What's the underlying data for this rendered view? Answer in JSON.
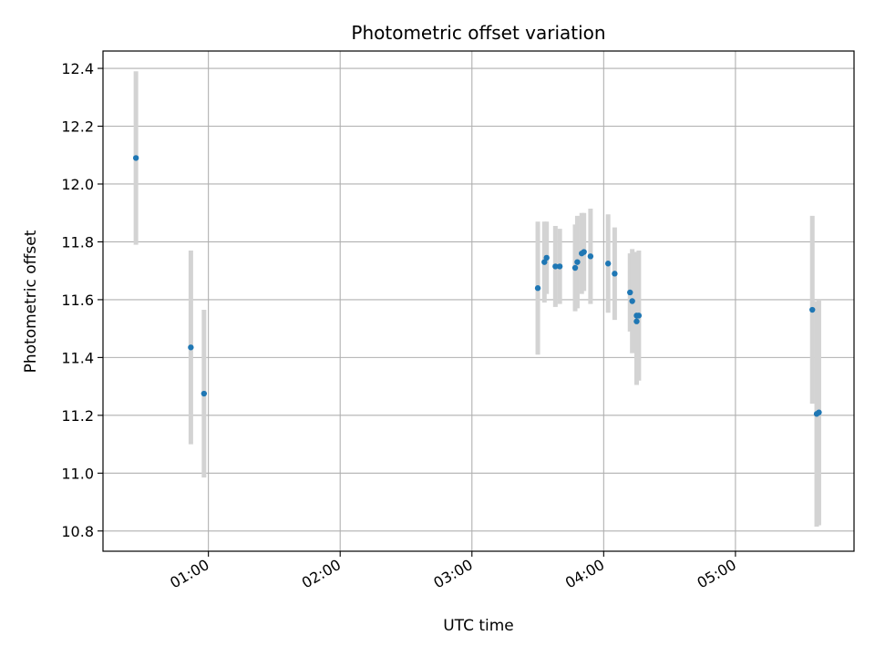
{
  "chart_data": {
    "type": "scatter",
    "title": "Photometric offset variation",
    "xlabel": "UTC time",
    "ylabel": "Photometric offset",
    "x_ticks": [
      "01:00",
      "02:00",
      "03:00",
      "04:00",
      "05:00"
    ],
    "y_ticks": [
      "10.8",
      "11.0",
      "11.2",
      "11.4",
      "11.6",
      "11.8",
      "12.0",
      "12.2",
      "12.4"
    ],
    "xlim": [
      "00:12",
      "05:54"
    ],
    "ylim": [
      10.73,
      12.46
    ],
    "grid": true,
    "colors": {
      "point": "#1f77b4",
      "errorbar": "#d3d3d3",
      "grid": "#b0b0b0"
    },
    "points": [
      {
        "x": "00:27",
        "y": 12.09,
        "err": 0.3
      },
      {
        "x": "00:52",
        "y": 11.435,
        "err": 0.335
      },
      {
        "x": "00:58",
        "y": 11.275,
        "err": 0.29
      },
      {
        "x": "03:30",
        "y": 11.64,
        "err": 0.23
      },
      {
        "x": "03:33",
        "y": 11.73,
        "err": 0.14
      },
      {
        "x": "03:34",
        "y": 11.745,
        "err": 0.125
      },
      {
        "x": "03:38",
        "y": 11.715,
        "err": 0.14
      },
      {
        "x": "03:40",
        "y": 11.715,
        "err": 0.13
      },
      {
        "x": "03:47",
        "y": 11.71,
        "err": 0.15
      },
      {
        "x": "03:48",
        "y": 11.73,
        "err": 0.16
      },
      {
        "x": "03:50",
        "y": 11.76,
        "err": 0.14
      },
      {
        "x": "03:51",
        "y": 11.765,
        "err": 0.135
      },
      {
        "x": "03:54",
        "y": 11.75,
        "err": 0.165
      },
      {
        "x": "04:02",
        "y": 11.725,
        "err": 0.17
      },
      {
        "x": "04:05",
        "y": 11.69,
        "err": 0.16
      },
      {
        "x": "04:12",
        "y": 11.625,
        "err": 0.135
      },
      {
        "x": "04:13",
        "y": 11.595,
        "err": 0.18
      },
      {
        "x": "04:15",
        "y": 11.545,
        "err": 0.22
      },
      {
        "x": "04:15",
        "y": 11.525,
        "err": 0.22
      },
      {
        "x": "04:16",
        "y": 11.545,
        "err": 0.225
      },
      {
        "x": "05:35",
        "y": 11.565,
        "err": 0.325
      },
      {
        "x": "05:37",
        "y": 11.205,
        "err": 0.39
      },
      {
        "x": "05:38",
        "y": 11.21,
        "err": 0.39
      }
    ]
  }
}
